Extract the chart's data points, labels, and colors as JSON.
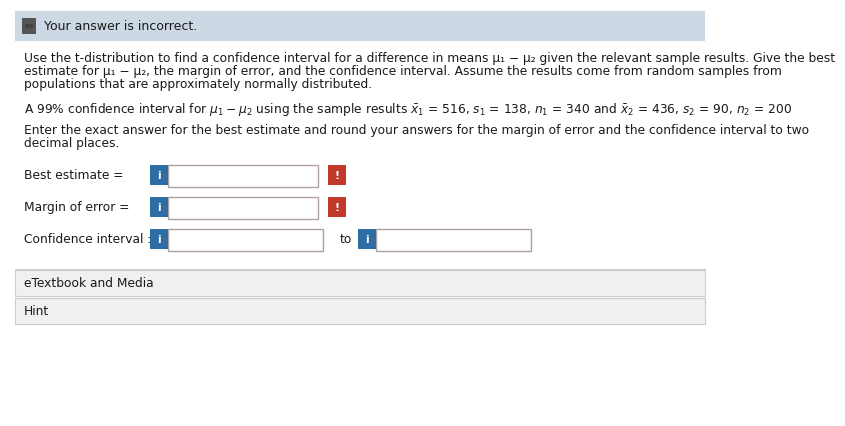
{
  "header_text": "Your answer is incorrect.",
  "header_bg": "#ccd8e4",
  "body_bg": "#ffffff",
  "para1_line1": "Use the t-distribution to find a confidence interval for a difference in means μ₁ − μ₂ given the relevant sample results. Give the best",
  "para1_line2": "estimate for μ₁ − μ₂, the margin of error, and the confidence interval. Assume the results come from random samples from",
  "para1_line3": "populations that are approximately normally distributed.",
  "para2": "A 99% confidence interval for μ₁ − μ₂ using the sample results",
  "para2_math": " $\\bar{x}_1$ = 516, $s_1$ = 138, $n_1$ = 340 and $\\bar{x}_2$ = 436, $s_2$ = 90, $n_2$ = 200",
  "para3_line1": "Enter the exact answer for the best estimate and round your answers for the margin of error and the confidence interval to two",
  "para3_line2": "decimal places.",
  "label_best": "Best estimate =",
  "label_margin": "Margin of error =",
  "label_confidence": "Confidence interval :",
  "to_text": "to",
  "etextbook": "eTextbook and Media",
  "hint": "Hint",
  "blue_color": "#2e6da4",
  "red_color": "#c0392b",
  "input_border": "#b0a0a0",
  "input_bg": "#ffffff",
  "text_color": "#1a1a1a",
  "font_size_body": 8.8,
  "font_size_header": 9.0,
  "outer_border": "#cccccc",
  "section_bg": "#f0f0f0",
  "section_border": "#cccccc",
  "red_btn_color": "#c0392b",
  "blue_btn_color": "#2e6da4"
}
